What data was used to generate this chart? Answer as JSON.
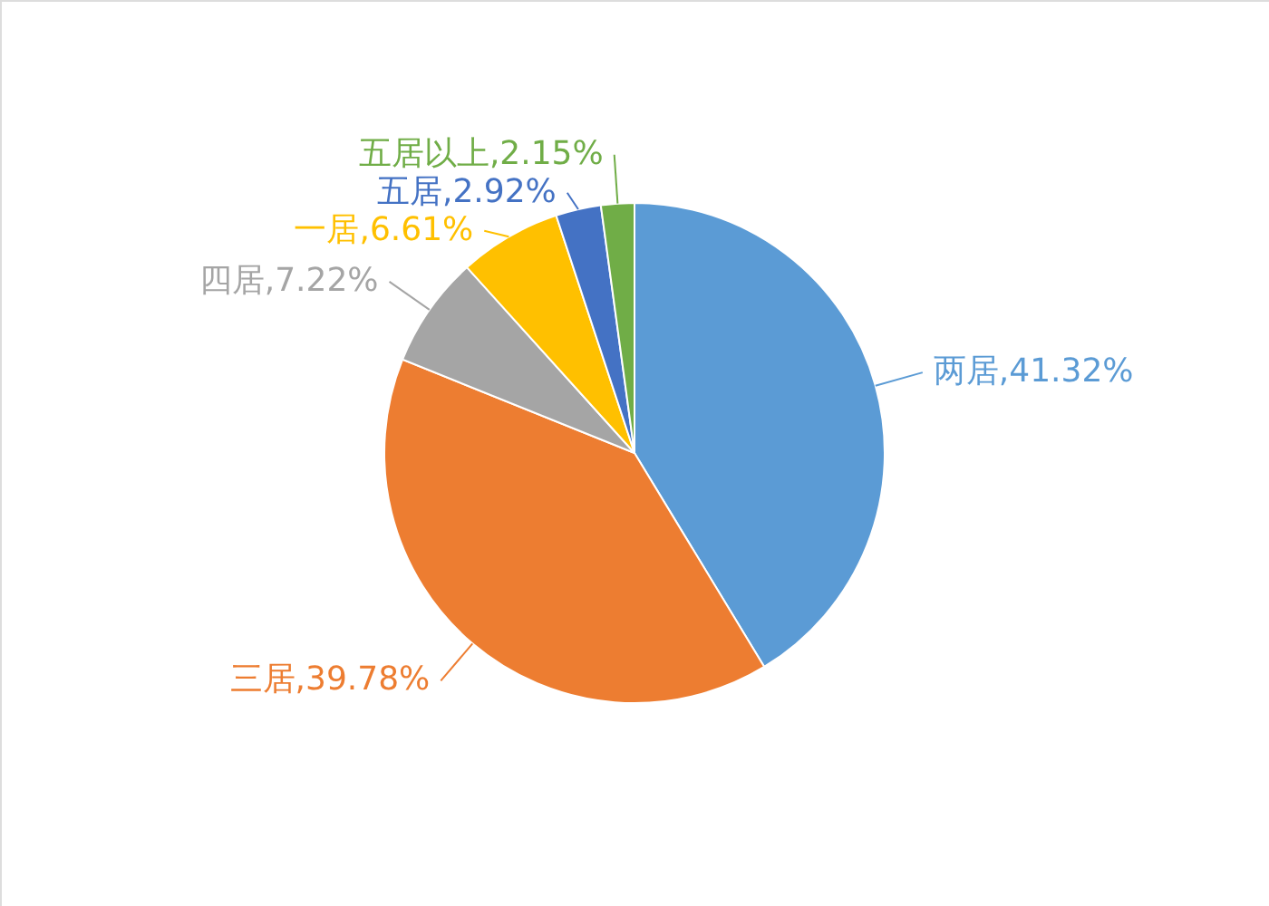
{
  "chart_data": {
    "type": "pie",
    "categories": [
      "两居",
      "三居",
      "四居",
      "一居",
      "五居",
      "五居以上"
    ],
    "values": [
      41.32,
      39.78,
      7.22,
      6.61,
      2.92,
      2.15
    ],
    "colors": [
      "#5b9bd5",
      "#ed7d31",
      "#a5a5a5",
      "#ffc000",
      "#4472c4",
      "#70ad47"
    ],
    "value_labels": [
      "41.32%",
      "39.78%",
      "7.22%",
      "6.61%",
      "2.92%",
      "2.15%"
    ]
  }
}
